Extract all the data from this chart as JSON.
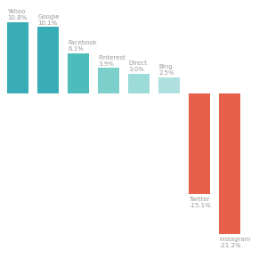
{
  "categories": [
    "Yahoo",
    "Google",
    "Facebook",
    "Pinterest",
    "Direct",
    "Bing",
    "Twitter",
    "Instagram"
  ],
  "values": [
    10.8,
    10.1,
    6.1,
    3.9,
    3.0,
    2.5,
    -15.1,
    -21.2
  ],
  "bar_colors": [
    "#39adb5",
    "#39adb5",
    "#4dbdbc",
    "#7dcfcc",
    "#9ddbd8",
    "#b0e0de",
    "#e8604a",
    "#e8604a"
  ],
  "label_color": "#999999",
  "background_color": "#ffffff",
  "bar_width": 0.72,
  "ylim": [
    -26,
    14
  ],
  "xlim": [
    -0.55,
    8.2
  ],
  "figsize": [
    3.0,
    3.0
  ],
  "dpi": 100,
  "label_fontsize": 5.0
}
